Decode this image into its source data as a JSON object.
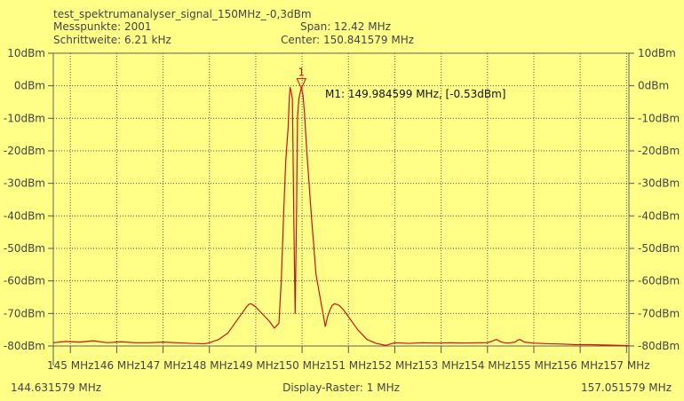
{
  "header": {
    "filename": "test_spektrumanalyser_signal_150MHz_-0,3dBm",
    "messpunkte": "Messpunkte: 2001",
    "schrittweite": "Schrittweite: 6.21 kHz",
    "span": "Span: 12.42 MHz",
    "center": "Center: 150.841579 MHz"
  },
  "footer": {
    "start_freq": "144.631579 MHz",
    "raster": "Display-Raster: 1 MHz",
    "stop_freq": "157.051579 MHz"
  },
  "colors": {
    "background": "#ffff88",
    "trace": "#cc1111",
    "grid": "#555555",
    "text": "#444444"
  },
  "chart_data": {
    "type": "line",
    "xlim": [
      144.631579,
      157.051579
    ],
    "ylim": [
      -80,
      10
    ],
    "grid": true,
    "y_ticks": [
      10,
      0,
      -10,
      -20,
      -30,
      -40,
      -50,
      -60,
      -70,
      -80
    ],
    "y_tick_labels": [
      "10dBm",
      "0dBm",
      "-10dBm",
      "-20dBm",
      "-30dBm",
      "-40dBm",
      "-50dBm",
      "-60dBm",
      "-70dBm",
      "-80dBm"
    ],
    "x_ticks": [
      145,
      146,
      147,
      148,
      149,
      150,
      151,
      152,
      153,
      154,
      155,
      156,
      157
    ],
    "x_tick_labels": [
      "145 MHz",
      "146 MHz",
      "147 MHz",
      "148 MHz",
      "149 MHz",
      "150 MHz",
      "151 MHz",
      "152 MHz",
      "153 MHz",
      "154 MHz",
      "155 MHz",
      "156 MHz",
      "157 MHz"
    ],
    "marker": {
      "number": "1",
      "x": 149.984599,
      "y": -0.53,
      "label": "M1: 149.984599 MHz, [-0.53dBm]"
    },
    "series": [
      {
        "x": [
          144.63,
          144.9,
          145.2,
          145.5,
          145.8,
          146.1,
          146.4,
          146.7,
          147.0,
          147.3,
          147.6,
          147.9,
          148.0,
          148.2,
          148.4,
          148.6,
          148.7,
          148.8,
          148.85,
          148.9,
          148.95,
          149.0,
          149.1,
          149.2,
          149.3,
          149.4,
          149.5,
          149.55,
          149.6,
          149.63,
          149.65,
          149.7,
          149.72,
          149.74,
          149.76,
          149.79,
          149.8,
          149.82,
          149.85,
          149.88,
          149.9,
          149.93,
          149.96,
          149.985,
          150.02,
          150.05,
          150.1,
          150.2,
          150.3,
          150.4,
          150.5,
          150.55,
          150.6,
          150.65,
          150.7,
          150.8,
          150.9,
          151.0,
          151.1,
          151.2,
          151.4,
          151.6,
          151.8,
          152.0,
          152.3,
          152.6,
          152.9,
          153.2,
          153.5,
          153.8,
          154.0,
          154.1,
          154.15,
          154.2,
          154.3,
          154.4,
          154.5,
          154.6,
          154.65,
          154.7,
          154.8,
          155.0,
          155.3,
          155.6,
          155.9,
          156.2,
          156.5,
          156.8,
          157.05
        ],
        "y": [
          -79,
          -78.6,
          -78.8,
          -78.4,
          -79,
          -78.7,
          -79,
          -79,
          -78.8,
          -79,
          -79.2,
          -79.3,
          -79,
          -78,
          -76,
          -72,
          -70,
          -68,
          -67.2,
          -67,
          -67.5,
          -68,
          -69.5,
          -71,
          -72.5,
          -74.5,
          -73,
          -60,
          -40,
          -29,
          -22.5,
          -12.5,
          -5,
          -0.5,
          -1.5,
          -4,
          -15,
          -40,
          -70,
          -40,
          -10,
          -4,
          -2,
          -0.53,
          -3,
          -8,
          -20,
          -40,
          -58,
          -66,
          -74,
          -71,
          -69,
          -67.5,
          -67,
          -67.5,
          -69,
          -71,
          -73,
          -75,
          -78,
          -79.2,
          -79.8,
          -79,
          -79.2,
          -79,
          -79.1,
          -79,
          -79.1,
          -79,
          -79,
          -78.5,
          -78.2,
          -78,
          -78.8,
          -79.1,
          -79,
          -78.8,
          -78.2,
          -78,
          -78.8,
          -79.1,
          -79.3,
          -79.4,
          -79.6,
          -79.6,
          -79.7,
          -79.8,
          -79.9
        ]
      }
    ]
  }
}
